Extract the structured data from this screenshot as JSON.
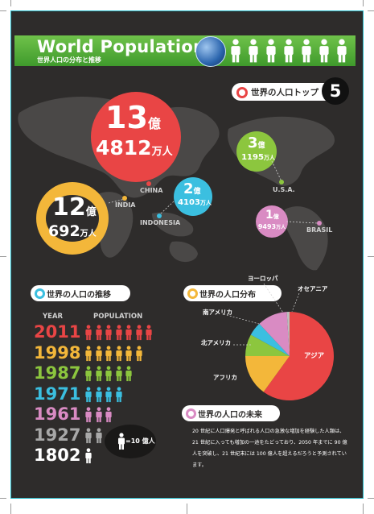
{
  "header": {
    "title": "World Population",
    "subtitle": "世界人口の分布と推移"
  },
  "top5": {
    "heading": "世界の人口トップ",
    "number": "5",
    "items": [
      {
        "country": "CHINA",
        "big": "13",
        "unit": "億",
        "small": "4812",
        "small_unit": "万人",
        "color": "#e94545"
      },
      {
        "country": "INDIA",
        "big": "12",
        "unit": "億",
        "small": "692",
        "small_unit": "万人",
        "color": "#f3b73a"
      },
      {
        "country": "INDONESIA",
        "big": "2",
        "unit": "億",
        "small": "4103",
        "small_unit": "万人",
        "color": "#3bbfe0"
      },
      {
        "country": "U.S.A.",
        "big": "3",
        "unit": "億",
        "small": "1195",
        "small_unit": "万人",
        "color": "#8cc63e"
      },
      {
        "country": "BRASIL",
        "big": "1",
        "unit": "億",
        "small": "9493",
        "small_unit": "万人",
        "color": "#d98bc3"
      }
    ]
  },
  "trend": {
    "heading": "世界の人口の推移",
    "col_year": "YEAR",
    "col_population": "POPULATION",
    "legend_value": "=10 億人",
    "rows": [
      {
        "year": "2011",
        "count": 7,
        "color": "#e94545"
      },
      {
        "year": "1998",
        "count": 6,
        "color": "#f3b73a"
      },
      {
        "year": "1987",
        "count": 5,
        "color": "#8cc63e"
      },
      {
        "year": "1971",
        "count": 4,
        "color": "#3bbfe0"
      },
      {
        "year": "1961",
        "count": 3,
        "color": "#d98bc3"
      },
      {
        "year": "1927",
        "count": 2,
        "color": "#a8a8a8"
      },
      {
        "year": "1802",
        "count": 1,
        "color": "#ffffff"
      }
    ]
  },
  "distribution": {
    "heading": "世界の人口分布"
  },
  "chart_data": {
    "type": "pie",
    "categories": [
      "アジア",
      "アフリカ",
      "北アメリカ",
      "南アメリカ",
      "ヨーロッパ",
      "オセアニア"
    ],
    "values": [
      60,
      15,
      8,
      5,
      11,
      1
    ],
    "colors": [
      "#e94545",
      "#f3b73a",
      "#8cc63e",
      "#3bbfe0",
      "#d98bc3",
      "#bdbdbd"
    ]
  },
  "future": {
    "heading": "世界の人口の未来",
    "text": "20 世紀に人口爆発と呼ばれる人口の急激な増加を経験した人類は、21 世紀に入っても増加の一途をたどっており、2050 年までに 90 億人を突破し、21 世紀末には 100 億人を超えるだろうと予測されています。"
  }
}
